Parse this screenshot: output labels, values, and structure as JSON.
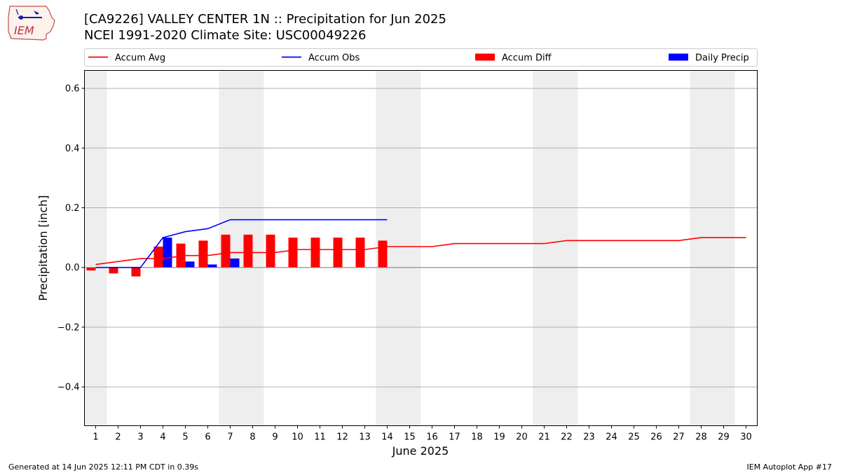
{
  "header": {
    "title_line1": "[CA9226] VALLEY CENTER 1N :: Precipitation for Jun 2025",
    "title_line2": "NCEI 1991-2020 Climate Site: USC00049226",
    "logo_text": "IEM"
  },
  "footer": {
    "left": "Generated at 14 Jun 2025 12:11 PM CDT in 0.39s",
    "right": "IEM Autoplot App #17"
  },
  "colors": {
    "accum_avg": "#ff0000",
    "accum_obs": "#0000ff",
    "accum_diff": "#ff0000",
    "daily_precip": "#0000ff",
    "weekend_shade": "#eeeeee",
    "grid": "#b0b0b0"
  },
  "chart_data": {
    "type": "bar",
    "xlabel": "June 2025",
    "ylabel": "Precipitation [inch]",
    "ylim": [
      -0.53,
      0.66
    ],
    "yticks": [
      -0.4,
      -0.2,
      0.0,
      0.2,
      0.4,
      0.6
    ],
    "ytick_labels": [
      "−0.4",
      "−0.2",
      "0.0",
      "0.2",
      "0.4",
      "0.6"
    ],
    "xlim": [
      0.5,
      30.5
    ],
    "days": [
      1,
      2,
      3,
      4,
      5,
      6,
      7,
      8,
      9,
      10,
      11,
      12,
      13,
      14,
      15,
      16,
      17,
      18,
      19,
      20,
      21,
      22,
      23,
      24,
      25,
      26,
      27,
      28,
      29,
      30
    ],
    "shaded_day_ranges": [
      [
        0.5,
        1.5
      ],
      [
        6.5,
        8.5
      ],
      [
        13.5,
        15.5
      ],
      [
        20.5,
        22.5
      ],
      [
        27.5,
        29.5
      ]
    ],
    "grid": "horizontal",
    "legend_position": "top",
    "legend": [
      "Accum Avg",
      "Accum Obs",
      "Accum Diff",
      "Daily Precip"
    ],
    "series": [
      {
        "name": "Accum Avg",
        "type": "line",
        "x": [
          1,
          2,
          3,
          4,
          5,
          6,
          7,
          8,
          9,
          10,
          11,
          12,
          13,
          14,
          15,
          16,
          17,
          18,
          19,
          20,
          21,
          22,
          23,
          24,
          25,
          26,
          27,
          28,
          29,
          30
        ],
        "values": [
          0.01,
          0.02,
          0.03,
          0.03,
          0.04,
          0.04,
          0.05,
          0.05,
          0.05,
          0.06,
          0.06,
          0.06,
          0.06,
          0.07,
          0.07,
          0.07,
          0.08,
          0.08,
          0.08,
          0.08,
          0.08,
          0.09,
          0.09,
          0.09,
          0.09,
          0.09,
          0.09,
          0.1,
          0.1,
          0.1
        ]
      },
      {
        "name": "Accum Obs",
        "type": "line",
        "x": [
          1,
          2,
          3,
          4,
          5,
          6,
          7,
          8,
          9,
          10,
          11,
          12,
          13,
          14
        ],
        "values": [
          0.0,
          0.0,
          0.0,
          0.1,
          0.12,
          0.13,
          0.16,
          0.16,
          0.16,
          0.16,
          0.16,
          0.16,
          0.16,
          0.16
        ]
      },
      {
        "name": "Accum Diff",
        "type": "bar",
        "x": [
          1,
          2,
          3,
          4,
          5,
          6,
          7,
          8,
          9,
          10,
          11,
          12,
          13,
          14
        ],
        "values": [
          -0.01,
          -0.02,
          -0.03,
          0.07,
          0.08,
          0.09,
          0.11,
          0.11,
          0.11,
          0.1,
          0.1,
          0.1,
          0.1,
          0.09
        ]
      },
      {
        "name": "Daily Precip",
        "type": "bar",
        "x": [
          4,
          5,
          6,
          7
        ],
        "values": [
          0.1,
          0.02,
          0.01,
          0.03
        ]
      }
    ]
  }
}
